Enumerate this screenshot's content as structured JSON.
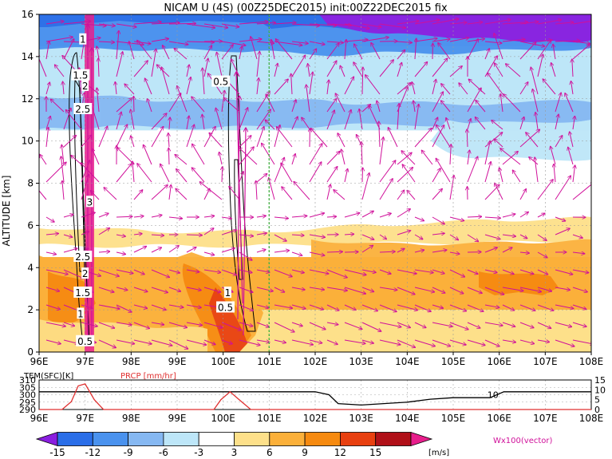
{
  "title": "NICAM U (4S) (00Z25DEC2015) init:00Z22DEC2015 fix",
  "chart_data": [
    {
      "type": "heatmap",
      "title": "NICAM U (4S) (00Z25DEC2015) init:00Z22DEC2015 fix",
      "xlabel": "",
      "ylabel": "ALTITUDE [km]",
      "xlim": [
        96,
        108
      ],
      "ylim": [
        0,
        16
      ],
      "x_ticks": [
        "96E",
        "97E",
        "98E",
        "99E",
        "100E",
        "101E",
        "102E",
        "103E",
        "104E",
        "105E",
        "106E",
        "107E",
        "108E"
      ],
      "y_ticks": [
        "0",
        "2",
        "4",
        "6",
        "8",
        "10",
        "12",
        "14",
        "16"
      ],
      "grid": true,
      "marker_line_x": 101,
      "contour_labels": [
        {
          "x": 96.95,
          "y": 14.8,
          "text": "1"
        },
        {
          "x": 96.9,
          "y": 13.1,
          "text": "1.5"
        },
        {
          "x": 97.0,
          "y": 12.6,
          "text": "2"
        },
        {
          "x": 96.95,
          "y": 11.5,
          "text": "2.5"
        },
        {
          "x": 97.1,
          "y": 7.1,
          "text": "3"
        },
        {
          "x": 96.95,
          "y": 4.5,
          "text": "2.5"
        },
        {
          "x": 97.0,
          "y": 3.7,
          "text": "2"
        },
        {
          "x": 96.95,
          "y": 2.8,
          "text": "1.5"
        },
        {
          "x": 96.9,
          "y": 1.8,
          "text": "1"
        },
        {
          "x": 97.0,
          "y": 0.5,
          "text": "0.5"
        },
        {
          "x": 99.95,
          "y": 12.8,
          "text": "0.5"
        },
        {
          "x": 100.1,
          "y": 2.8,
          "text": "1"
        },
        {
          "x": 100.05,
          "y": 2.1,
          "text": "0.5"
        }
      ],
      "bands": [
        {
          "y": [
            14.5,
            16
          ],
          "value": -9
        },
        {
          "y": [
            10.5,
            14.5
          ],
          "value": -6
        },
        {
          "y": [
            7.5,
            10.5
          ],
          "value": -3
        },
        {
          "y": [
            4.5,
            7.5
          ],
          "value": 0
        },
        {
          "y": [
            2,
            4.5
          ],
          "value": 6
        },
        {
          "y": [
            0,
            2
          ],
          "value": 3
        }
      ],
      "colorbar": {
        "levels": [
          "-15",
          "-12",
          "-9",
          "-6",
          "-3",
          "3",
          "6",
          "9",
          "12",
          "15"
        ],
        "unit": "[m/s]",
        "colors": [
          "#8a1ee0",
          "#2a6ee8",
          "#4a92ee",
          "#86b8f2",
          "#bde6f8",
          "#ffffff",
          "#fde08a",
          "#fbb03a",
          "#f68a10",
          "#e84010",
          "#b01018",
          "#e81e8c"
        ]
      },
      "vector_label": "Wx100(vector)",
      "vector_color": "#d0109a"
    },
    {
      "type": "line",
      "xlim": [
        96,
        108
      ],
      "x_ticks": [
        "96E",
        "97E",
        "98E",
        "99E",
        "100E",
        "101E",
        "102E",
        "103E",
        "104E",
        "105E",
        "106E",
        "107E",
        "108E"
      ],
      "series": [
        {
          "name": "TEM(SFC)[K]",
          "color": "#000000",
          "x": [
            96,
            97,
            98,
            99,
            100,
            101,
            102,
            102.3,
            102.5,
            103,
            104,
            104.5,
            105,
            105.8,
            106.1,
            106.3,
            107,
            108
          ],
          "y": [
            302,
            302,
            302,
            302,
            302,
            302,
            302,
            300,
            294,
            293,
            295,
            297,
            298,
            298,
            302,
            302,
            302,
            302
          ],
          "ylim": [
            290,
            310
          ],
          "ticks": [
            "310",
            "305",
            "300",
            "295",
            "290"
          ]
        },
        {
          "name": "PRCP [mm/hr]",
          "color": "#e03030",
          "x": [
            96,
            96.5,
            96.7,
            96.85,
            97.0,
            97.2,
            97.4,
            99.8,
            99.95,
            100.15,
            100.35,
            100.6,
            108
          ],
          "y": [
            0,
            0,
            4,
            12,
            13,
            5,
            0,
            0,
            5,
            9,
            5,
            0,
            0
          ],
          "ylim": [
            0,
            15
          ],
          "ticks": [
            "15",
            "10",
            "5",
            "0"
          ]
        }
      ],
      "annotations": [
        {
          "x": 105.95,
          "y": 300,
          "text": "10"
        }
      ]
    }
  ]
}
